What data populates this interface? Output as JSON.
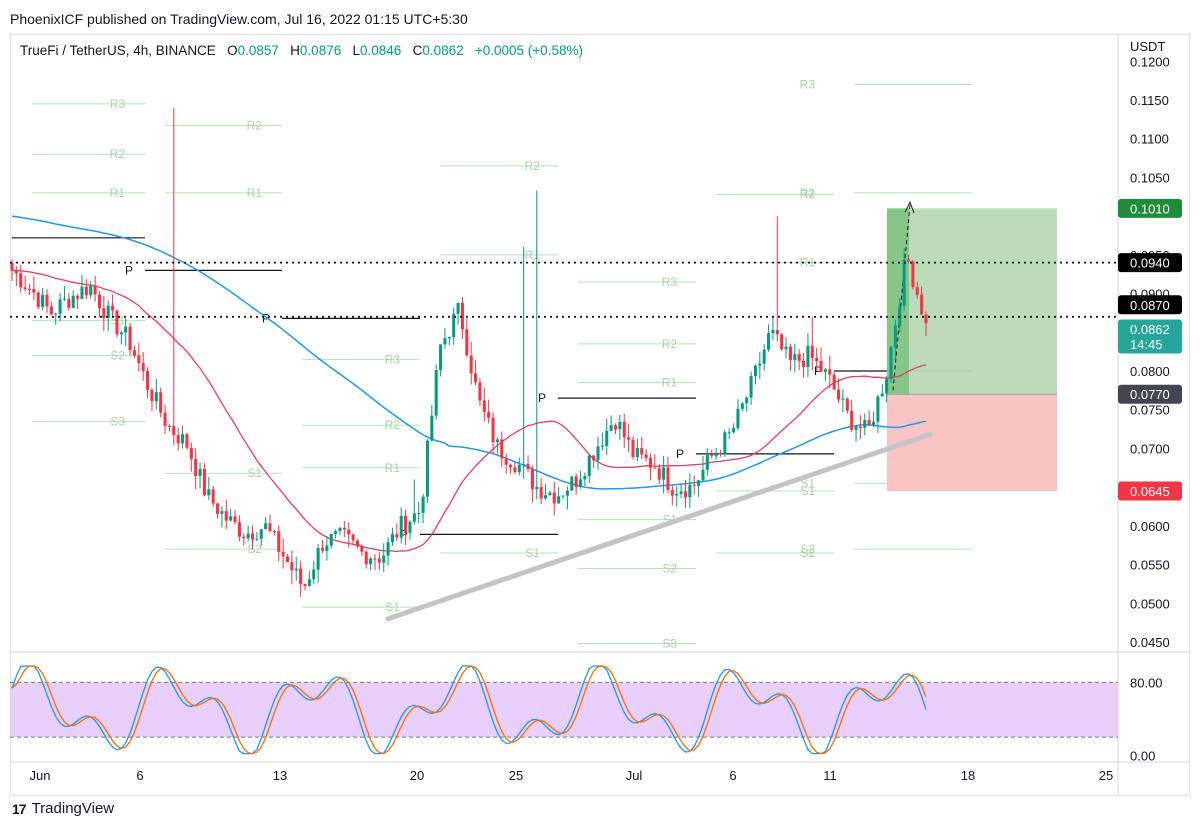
{
  "header": {
    "published": "PhoenixICF published on TradingView.com, Jul 16, 2022 01:15 UTC+5:30"
  },
  "legend": {
    "symbol": "TrueFi / TetherUS, 4h, BINANCE",
    "o_label": "O",
    "o": "0.0857",
    "h_label": "H",
    "h": "0.0876",
    "l_label": "L",
    "l": "0.0846",
    "c_label": "C",
    "c": "0.0862",
    "change": "+0.0005 (+0.58%)"
  },
  "footer": {
    "brand": "TradingView",
    "logo": "17"
  },
  "colors": {
    "up": "#089981",
    "down": "#f23645",
    "sma_long": "#2196f3",
    "sma_short": "#e0416a",
    "target_zone": "#b7d9b5",
    "stop_zone": "#f8c1c1",
    "stoch_band": "#e6cbfa"
  },
  "chart_data": [
    {
      "type": "candlestick",
      "title": "TrueFi / TetherUS, 4h, BINANCE",
      "y_axis_unit": "USDT",
      "ylim": [
        0.0415,
        0.1225
      ],
      "yticks": [
        "0.1200",
        "0.1150",
        "0.1100",
        "0.1050",
        "0.0950",
        "0.0900",
        "0.0800",
        "0.0750",
        "0.0700",
        "0.0650",
        "0.0600",
        "0.0550",
        "0.0500",
        "0.0450"
      ],
      "x_ticks": [
        "Jun",
        "6",
        "13",
        "20",
        "25",
        "Jul",
        "6",
        "11",
        "18",
        "25"
      ],
      "price_labels": [
        {
          "value": 0.101,
          "label": "0.1010",
          "color": "#1e8c3a"
        },
        {
          "value": 0.094,
          "label": "0.0940",
          "color": "#000000"
        },
        {
          "value": 0.087,
          "label": "0.0870",
          "color": "#000000"
        },
        {
          "value": 0.0862,
          "label": "0.0862",
          "sub": "14:45",
          "color": "#26a69a"
        },
        {
          "value": 0.077,
          "label": "0.0770",
          "color": "#434651"
        },
        {
          "value": 0.0645,
          "label": "0.0645",
          "color": "#f23645"
        }
      ],
      "horizontal_levels": [
        0.094,
        0.087
      ],
      "position": {
        "entry": 0.077,
        "target": 0.101,
        "stop": 0.0645
      },
      "trendline": {
        "from": 0.048,
        "to": 0.0718
      },
      "close_anchors": [
        0.093,
        0.0905,
        0.0875,
        0.0895,
        0.091,
        0.087,
        0.084,
        0.078,
        0.073,
        0.0705,
        0.064,
        0.061,
        0.059,
        0.06,
        0.056,
        0.052,
        0.058,
        0.0585,
        0.0565,
        0.056,
        0.06,
        0.062,
        0.083,
        0.088,
        0.076,
        0.07,
        0.068,
        0.065,
        0.064,
        0.066,
        0.07,
        0.074,
        0.069,
        0.068,
        0.065,
        0.065,
        0.069,
        0.072,
        0.078,
        0.085,
        0.081,
        0.082,
        0.079,
        0.074,
        0.072,
        0.08,
        0.095,
        0.0862
      ],
      "pivot_labels": {
        "r3": "R3",
        "r2": "R2",
        "r1": "R1",
        "s1": "S1",
        "s2": "S2",
        "s3": "S3",
        "p": "P"
      }
    },
    {
      "type": "line",
      "title": "Stochastic",
      "ylim": [
        -5,
        110
      ],
      "yticks": [
        "80.00",
        "0.00"
      ],
      "bands": [
        20,
        80
      ]
    }
  ]
}
